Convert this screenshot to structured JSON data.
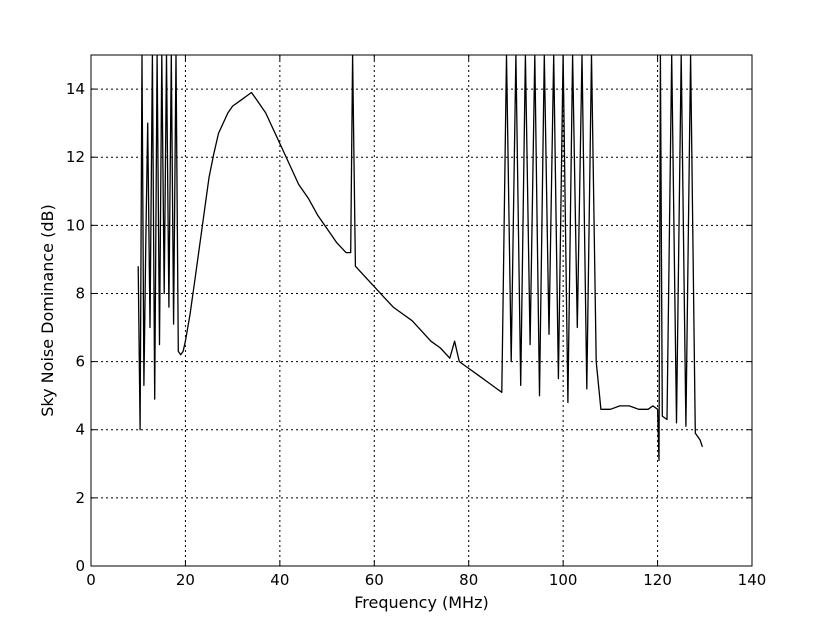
{
  "chart_data": {
    "type": "line",
    "title": "",
    "xlabel": "Frequency (MHz)",
    "ylabel": "Sky Noise Dominance (dB)",
    "xlim": [
      0,
      140
    ],
    "ylim": [
      0,
      15
    ],
    "xticks": [
      0,
      20,
      40,
      60,
      80,
      100,
      120,
      140
    ],
    "xtick_labels": [
      "0",
      "20",
      "40",
      "60",
      "80",
      "100",
      "120",
      "140"
    ],
    "yticks": [
      0,
      2,
      4,
      6,
      8,
      10,
      12,
      14
    ],
    "ytick_labels": [
      "0",
      "2",
      "4",
      "6",
      "8",
      "10",
      "12",
      "14"
    ],
    "grid": true,
    "grid_style": "dotted",
    "line_color": "#000000",
    "series": [
      {
        "name": "",
        "x": [
          10,
          10.4,
          10.8,
          11.2,
          11.6,
          12,
          12.5,
          13,
          13.5,
          14,
          14.5,
          15,
          15.5,
          16,
          16.5,
          17,
          17.5,
          18,
          18.5,
          19,
          19.5,
          20,
          21,
          22,
          23,
          24,
          25,
          26,
          27,
          28,
          29,
          30,
          31,
          32,
          33,
          34,
          35,
          36,
          37,
          38,
          40,
          42,
          44,
          46,
          48,
          50,
          52,
          54,
          55,
          55.4,
          56,
          58,
          60,
          62,
          64,
          66,
          68,
          70,
          72,
          74,
          76,
          77,
          78,
          80,
          82,
          84,
          86,
          87,
          88,
          89,
          90,
          91,
          92,
          93,
          94,
          95,
          96,
          97,
          98,
          99,
          100,
          101,
          102,
          103,
          104,
          105,
          106,
          107,
          108,
          110,
          112,
          114,
          116,
          118,
          119,
          120,
          120.3,
          120.6,
          121,
          122,
          123,
          124,
          125,
          126,
          127,
          128,
          129,
          129.5
        ],
        "y": [
          8.8,
          4.0,
          15,
          5.3,
          9.5,
          13,
          7.0,
          15,
          4.9,
          15,
          6.5,
          15,
          8.0,
          15,
          7.6,
          15,
          7.1,
          15,
          6.3,
          6.2,
          6.3,
          6.6,
          7.4,
          8.4,
          9.4,
          10.4,
          11.4,
          12.1,
          12.7,
          13.0,
          13.3,
          13.5,
          13.6,
          13.7,
          13.8,
          13.9,
          13.7,
          13.5,
          13.3,
          13.0,
          12.4,
          11.8,
          11.2,
          10.8,
          10.3,
          9.9,
          9.5,
          9.2,
          9.2,
          15,
          8.8,
          8.5,
          8.2,
          7.9,
          7.6,
          7.4,
          7.2,
          6.9,
          6.6,
          6.4,
          6.1,
          6.6,
          6.0,
          5.8,
          5.6,
          5.4,
          5.2,
          5.1,
          15,
          6.0,
          15,
          5.3,
          15,
          6.5,
          15,
          5.0,
          15,
          6.8,
          15,
          5.5,
          15,
          4.8,
          15,
          7.0,
          15,
          5.2,
          15,
          6.0,
          4.6,
          4.6,
          4.7,
          4.7,
          4.6,
          4.6,
          4.7,
          4.6,
          3.1,
          15,
          4.4,
          4.3,
          15,
          4.2,
          15,
          4.1,
          15,
          3.9,
          3.7,
          3.5
        ]
      }
    ]
  }
}
